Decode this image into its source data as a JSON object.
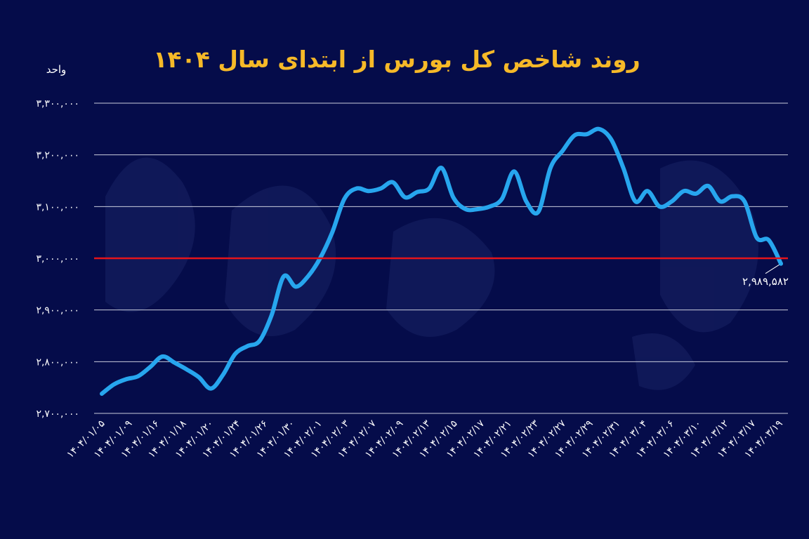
{
  "chart_data": {
    "type": "line",
    "title": "روند شاخص کل بورس از ابتدای سال ۱۴۰۴",
    "ylabel": "واحد",
    "ylim": [
      2700000,
      3300000
    ],
    "y_ticks": [
      "۲,۷۰۰,۰۰۰",
      "۲,۸۰۰,۰۰۰",
      "۲,۹۰۰,۰۰۰",
      "۳,۰۰۰,۰۰۰",
      "۳,۱۰۰,۰۰۰",
      "۳,۲۰۰,۰۰۰",
      "۳,۳۰۰,۰۰۰"
    ],
    "y_tick_values": [
      2700000,
      2800000,
      2900000,
      3000000,
      3100000,
      3200000,
      3300000
    ],
    "x_tick_labels": [
      "۱۴۰۴/۰۱/۰۵",
      "۱۴۰۴/۰۱/۰۹",
      "۱۴۰۴/۰۱/۱۶",
      "۱۴۰۴/۰۱/۱۸",
      "۱۴۰۴/۰۱/۲۰",
      "۱۴۰۴/۰۱/۲۴",
      "۱۴۰۴/۰۱/۲۶",
      "۱۴۰۴/۰۱/۳۰",
      "۱۴۰۴/۰۲/۰۱",
      "۱۴۰۴/۰۲/۰۳",
      "۱۴۰۴/۰۲/۰۷",
      "۱۴۰۴/۰۲/۰۹",
      "۱۴۰۴/۰۲/۱۳",
      "۱۴۰۴/۰۲/۱۵",
      "۱۴۰۴/۰۲/۱۷",
      "۱۴۰۴/۰۲/۲۱",
      "۱۴۰۴/۰۲/۲۳",
      "۱۴۰۴/۰۲/۲۷",
      "۱۴۰۴/۰۲/۲۹",
      "۱۴۰۴/۰۲/۳۱",
      "۱۴۰۴/۰۳/۰۴",
      "۱۴۰۴/۰۳/۰۶",
      "۱۴۰۴/۰۳/۱۰",
      "۱۴۰۴/۰۳/۱۲",
      "۱۴۰۴/۰۳/۱۷",
      "۱۴۰۴/۰۳/۱۹"
    ],
    "series": [
      {
        "values": [
          2738000,
          2756000,
          2766000,
          2772000,
          2790000,
          2810000,
          2798000,
          2785000,
          2770000,
          2748000,
          2775000,
          2815000,
          2830000,
          2840000,
          2890000,
          2965000,
          2945000,
          2965000,
          3000000,
          3050000,
          3115000,
          3135000,
          3130000,
          3135000,
          3147000,
          3118000,
          3128000,
          3135000,
          3175000,
          3117000,
          3095000,
          3095000,
          3100000,
          3115000,
          3168000,
          3110000,
          3090000,
          3175000,
          3208000,
          3238000,
          3240000,
          3250000,
          3230000,
          3175000,
          3110000,
          3130000,
          3100000,
          3110000,
          3130000,
          3125000,
          3140000,
          3110000,
          3120000,
          3110000,
          3040000,
          3035000,
          2989582
        ]
      }
    ],
    "reference_line": {
      "value": 3000000,
      "color": "#e4141b"
    },
    "last_value_label": "۲,۹۸۹,۵۸۲",
    "grid": true,
    "legend": "none",
    "colors": {
      "background": "#050c4a",
      "line": "#27a6ee",
      "title": "#f6b928",
      "text": "#ffffff",
      "grid": "#c9ccdc"
    }
  }
}
